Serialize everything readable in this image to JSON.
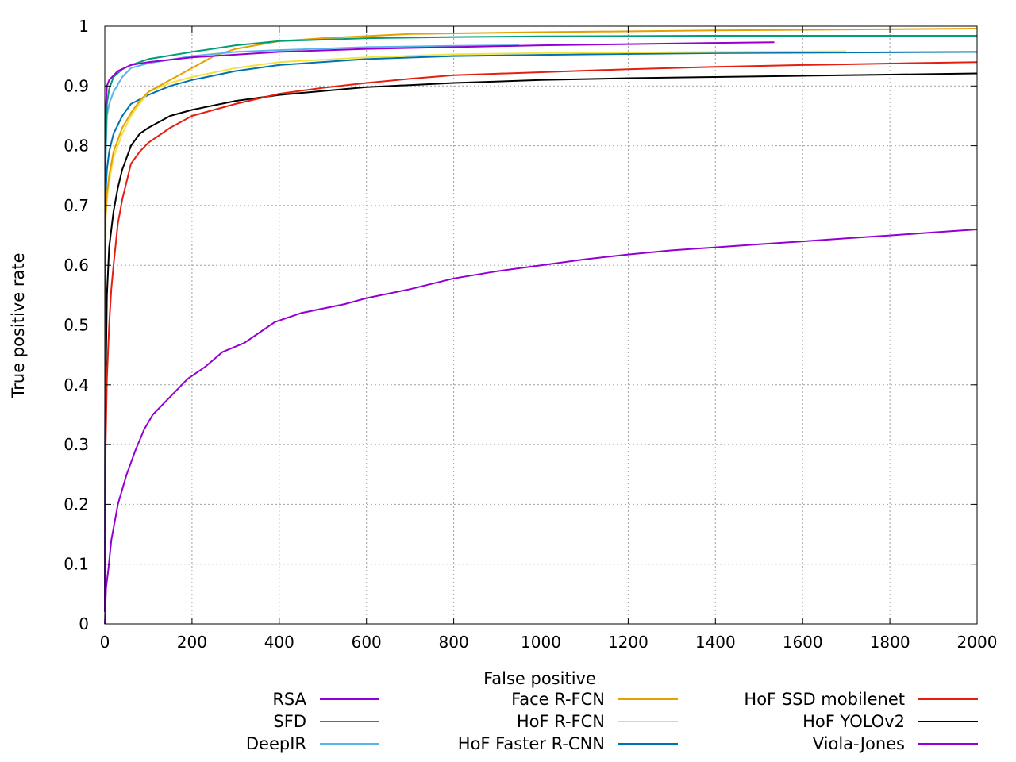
{
  "chart_data": {
    "type": "line",
    "title": "",
    "xlabel": "False positive",
    "ylabel": "True positive rate",
    "xlim": [
      0,
      2000
    ],
    "ylim": [
      0,
      1
    ],
    "xticks": [
      0,
      200,
      400,
      600,
      800,
      1000,
      1200,
      1400,
      1600,
      1800,
      2000
    ],
    "yticks": [
      0,
      0.1,
      0.2,
      0.3,
      0.4,
      0.5,
      0.6,
      0.7,
      0.8,
      0.9,
      1
    ],
    "ytick_labels": [
      "0",
      "0.1",
      "0.2",
      "0.3",
      "0.4",
      "0.5",
      "0.6",
      "0.7",
      "0.8",
      "0.9",
      "1"
    ],
    "grid": true,
    "legend_position": "bottom",
    "series": [
      {
        "name": "RSA",
        "color": "#9400d3",
        "points": [
          [
            0,
            0.02
          ],
          [
            2,
            0.86
          ],
          [
            5,
            0.9
          ],
          [
            10,
            0.91
          ],
          [
            30,
            0.925
          ],
          [
            60,
            0.935
          ],
          [
            100,
            0.94
          ],
          [
            200,
            0.948
          ],
          [
            400,
            0.957
          ],
          [
            600,
            0.962
          ],
          [
            800,
            0.965
          ],
          [
            1000,
            0.968
          ],
          [
            1200,
            0.97
          ],
          [
            1400,
            0.972
          ],
          [
            1535,
            0.973
          ]
        ]
      },
      {
        "name": "SFD",
        "color": "#009e73",
        "points": [
          [
            0,
            0.02
          ],
          [
            2,
            0.8
          ],
          [
            5,
            0.87
          ],
          [
            10,
            0.895
          ],
          [
            20,
            0.915
          ],
          [
            40,
            0.928
          ],
          [
            60,
            0.935
          ],
          [
            100,
            0.945
          ],
          [
            200,
            0.957
          ],
          [
            300,
            0.968
          ],
          [
            400,
            0.975
          ],
          [
            600,
            0.98
          ],
          [
            800,
            0.982
          ],
          [
            1000,
            0.983
          ],
          [
            1400,
            0.984
          ],
          [
            2000,
            0.984
          ]
        ]
      },
      {
        "name": "DeepIR",
        "color": "#56b4e9",
        "points": [
          [
            0,
            0.02
          ],
          [
            2,
            0.78
          ],
          [
            5,
            0.85
          ],
          [
            10,
            0.87
          ],
          [
            20,
            0.89
          ],
          [
            40,
            0.915
          ],
          [
            60,
            0.93
          ],
          [
            100,
            0.938
          ],
          [
            200,
            0.95
          ],
          [
            300,
            0.957
          ],
          [
            400,
            0.96
          ],
          [
            600,
            0.965
          ],
          [
            800,
            0.967
          ],
          [
            950,
            0.968
          ]
        ]
      },
      {
        "name": "Face R-FCN",
        "color": "#e69f00",
        "points": [
          [
            0,
            0.02
          ],
          [
            2,
            0.68
          ],
          [
            5,
            0.72
          ],
          [
            10,
            0.75
          ],
          [
            20,
            0.79
          ],
          [
            40,
            0.83
          ],
          [
            60,
            0.855
          ],
          [
            80,
            0.875
          ],
          [
            100,
            0.89
          ],
          [
            150,
            0.91
          ],
          [
            200,
            0.93
          ],
          [
            250,
            0.95
          ],
          [
            300,
            0.962
          ],
          [
            400,
            0.975
          ],
          [
            500,
            0.98
          ],
          [
            700,
            0.987
          ],
          [
            1000,
            0.99
          ],
          [
            1400,
            0.993
          ],
          [
            2000,
            0.996
          ]
        ]
      },
      {
        "name": "HoF R-FCN",
        "color": "#f0e442",
        "points": [
          [
            0,
            0.02
          ],
          [
            2,
            0.68
          ],
          [
            5,
            0.71
          ],
          [
            10,
            0.74
          ],
          [
            20,
            0.78
          ],
          [
            40,
            0.82
          ],
          [
            60,
            0.85
          ],
          [
            80,
            0.87
          ],
          [
            100,
            0.89
          ],
          [
            150,
            0.905
          ],
          [
            200,
            0.915
          ],
          [
            300,
            0.93
          ],
          [
            400,
            0.94
          ],
          [
            600,
            0.948
          ],
          [
            800,
            0.953
          ],
          [
            1000,
            0.955
          ],
          [
            1200,
            0.956
          ],
          [
            1400,
            0.957
          ],
          [
            1700,
            0.958
          ]
        ]
      },
      {
        "name": "HoF Faster R-CNN",
        "color": "#0072b2",
        "points": [
          [
            0,
            0.02
          ],
          [
            2,
            0.72
          ],
          [
            5,
            0.76
          ],
          [
            10,
            0.79
          ],
          [
            20,
            0.82
          ],
          [
            40,
            0.85
          ],
          [
            60,
            0.87
          ],
          [
            100,
            0.885
          ],
          [
            150,
            0.9
          ],
          [
            200,
            0.91
          ],
          [
            300,
            0.925
          ],
          [
            400,
            0.935
          ],
          [
            600,
            0.945
          ],
          [
            800,
            0.95
          ],
          [
            1000,
            0.952
          ],
          [
            1400,
            0.955
          ],
          [
            2000,
            0.957
          ]
        ]
      },
      {
        "name": "HoF SSD mobilenet",
        "color": "#e51e10",
        "points": [
          [
            0,
            0.02
          ],
          [
            2,
            0.3
          ],
          [
            5,
            0.41
          ],
          [
            10,
            0.5
          ],
          [
            15,
            0.56
          ],
          [
            20,
            0.6
          ],
          [
            30,
            0.67
          ],
          [
            40,
            0.71
          ],
          [
            50,
            0.74
          ],
          [
            60,
            0.77
          ],
          [
            80,
            0.79
          ],
          [
            100,
            0.805
          ],
          [
            150,
            0.83
          ],
          [
            200,
            0.85
          ],
          [
            300,
            0.87
          ],
          [
            400,
            0.887
          ],
          [
            500,
            0.897
          ],
          [
            600,
            0.905
          ],
          [
            700,
            0.912
          ],
          [
            800,
            0.918
          ],
          [
            1000,
            0.923
          ],
          [
            1200,
            0.928
          ],
          [
            1400,
            0.932
          ],
          [
            1600,
            0.935
          ],
          [
            2000,
            0.94
          ]
        ]
      },
      {
        "name": "HoF YOLOv2",
        "color": "#000000",
        "points": [
          [
            0,
            0.02
          ],
          [
            2,
            0.4
          ],
          [
            5,
            0.55
          ],
          [
            10,
            0.63
          ],
          [
            20,
            0.69
          ],
          [
            30,
            0.73
          ],
          [
            40,
            0.76
          ],
          [
            60,
            0.8
          ],
          [
            80,
            0.82
          ],
          [
            100,
            0.83
          ],
          [
            150,
            0.85
          ],
          [
            200,
            0.86
          ],
          [
            300,
            0.875
          ],
          [
            400,
            0.885
          ],
          [
            600,
            0.898
          ],
          [
            800,
            0.905
          ],
          [
            1000,
            0.91
          ],
          [
            1200,
            0.913
          ],
          [
            1400,
            0.915
          ],
          [
            1600,
            0.917
          ],
          [
            1800,
            0.919
          ],
          [
            2000,
            0.921
          ]
        ]
      },
      {
        "name": "Viola-Jones",
        "color": "#9400d3",
        "points": [
          [
            0,
            0.0
          ],
          [
            3,
            0.06
          ],
          [
            8,
            0.09
          ],
          [
            15,
            0.14
          ],
          [
            20,
            0.16
          ],
          [
            30,
            0.2
          ],
          [
            50,
            0.25
          ],
          [
            70,
            0.29
          ],
          [
            90,
            0.325
          ],
          [
            110,
            0.35
          ],
          [
            150,
            0.38
          ],
          [
            190,
            0.41
          ],
          [
            230,
            0.43
          ],
          [
            270,
            0.455
          ],
          [
            320,
            0.47
          ],
          [
            360,
            0.49
          ],
          [
            390,
            0.505
          ],
          [
            450,
            0.52
          ],
          [
            550,
            0.535
          ],
          [
            600,
            0.545
          ],
          [
            700,
            0.56
          ],
          [
            800,
            0.578
          ],
          [
            900,
            0.59
          ],
          [
            1000,
            0.6
          ],
          [
            1100,
            0.61
          ],
          [
            1200,
            0.618
          ],
          [
            1300,
            0.625
          ],
          [
            1400,
            0.63
          ],
          [
            1500,
            0.635
          ],
          [
            1600,
            0.64
          ],
          [
            1700,
            0.645
          ],
          [
            1800,
            0.65
          ],
          [
            1900,
            0.655
          ],
          [
            2000,
            0.66
          ]
        ]
      }
    ]
  }
}
